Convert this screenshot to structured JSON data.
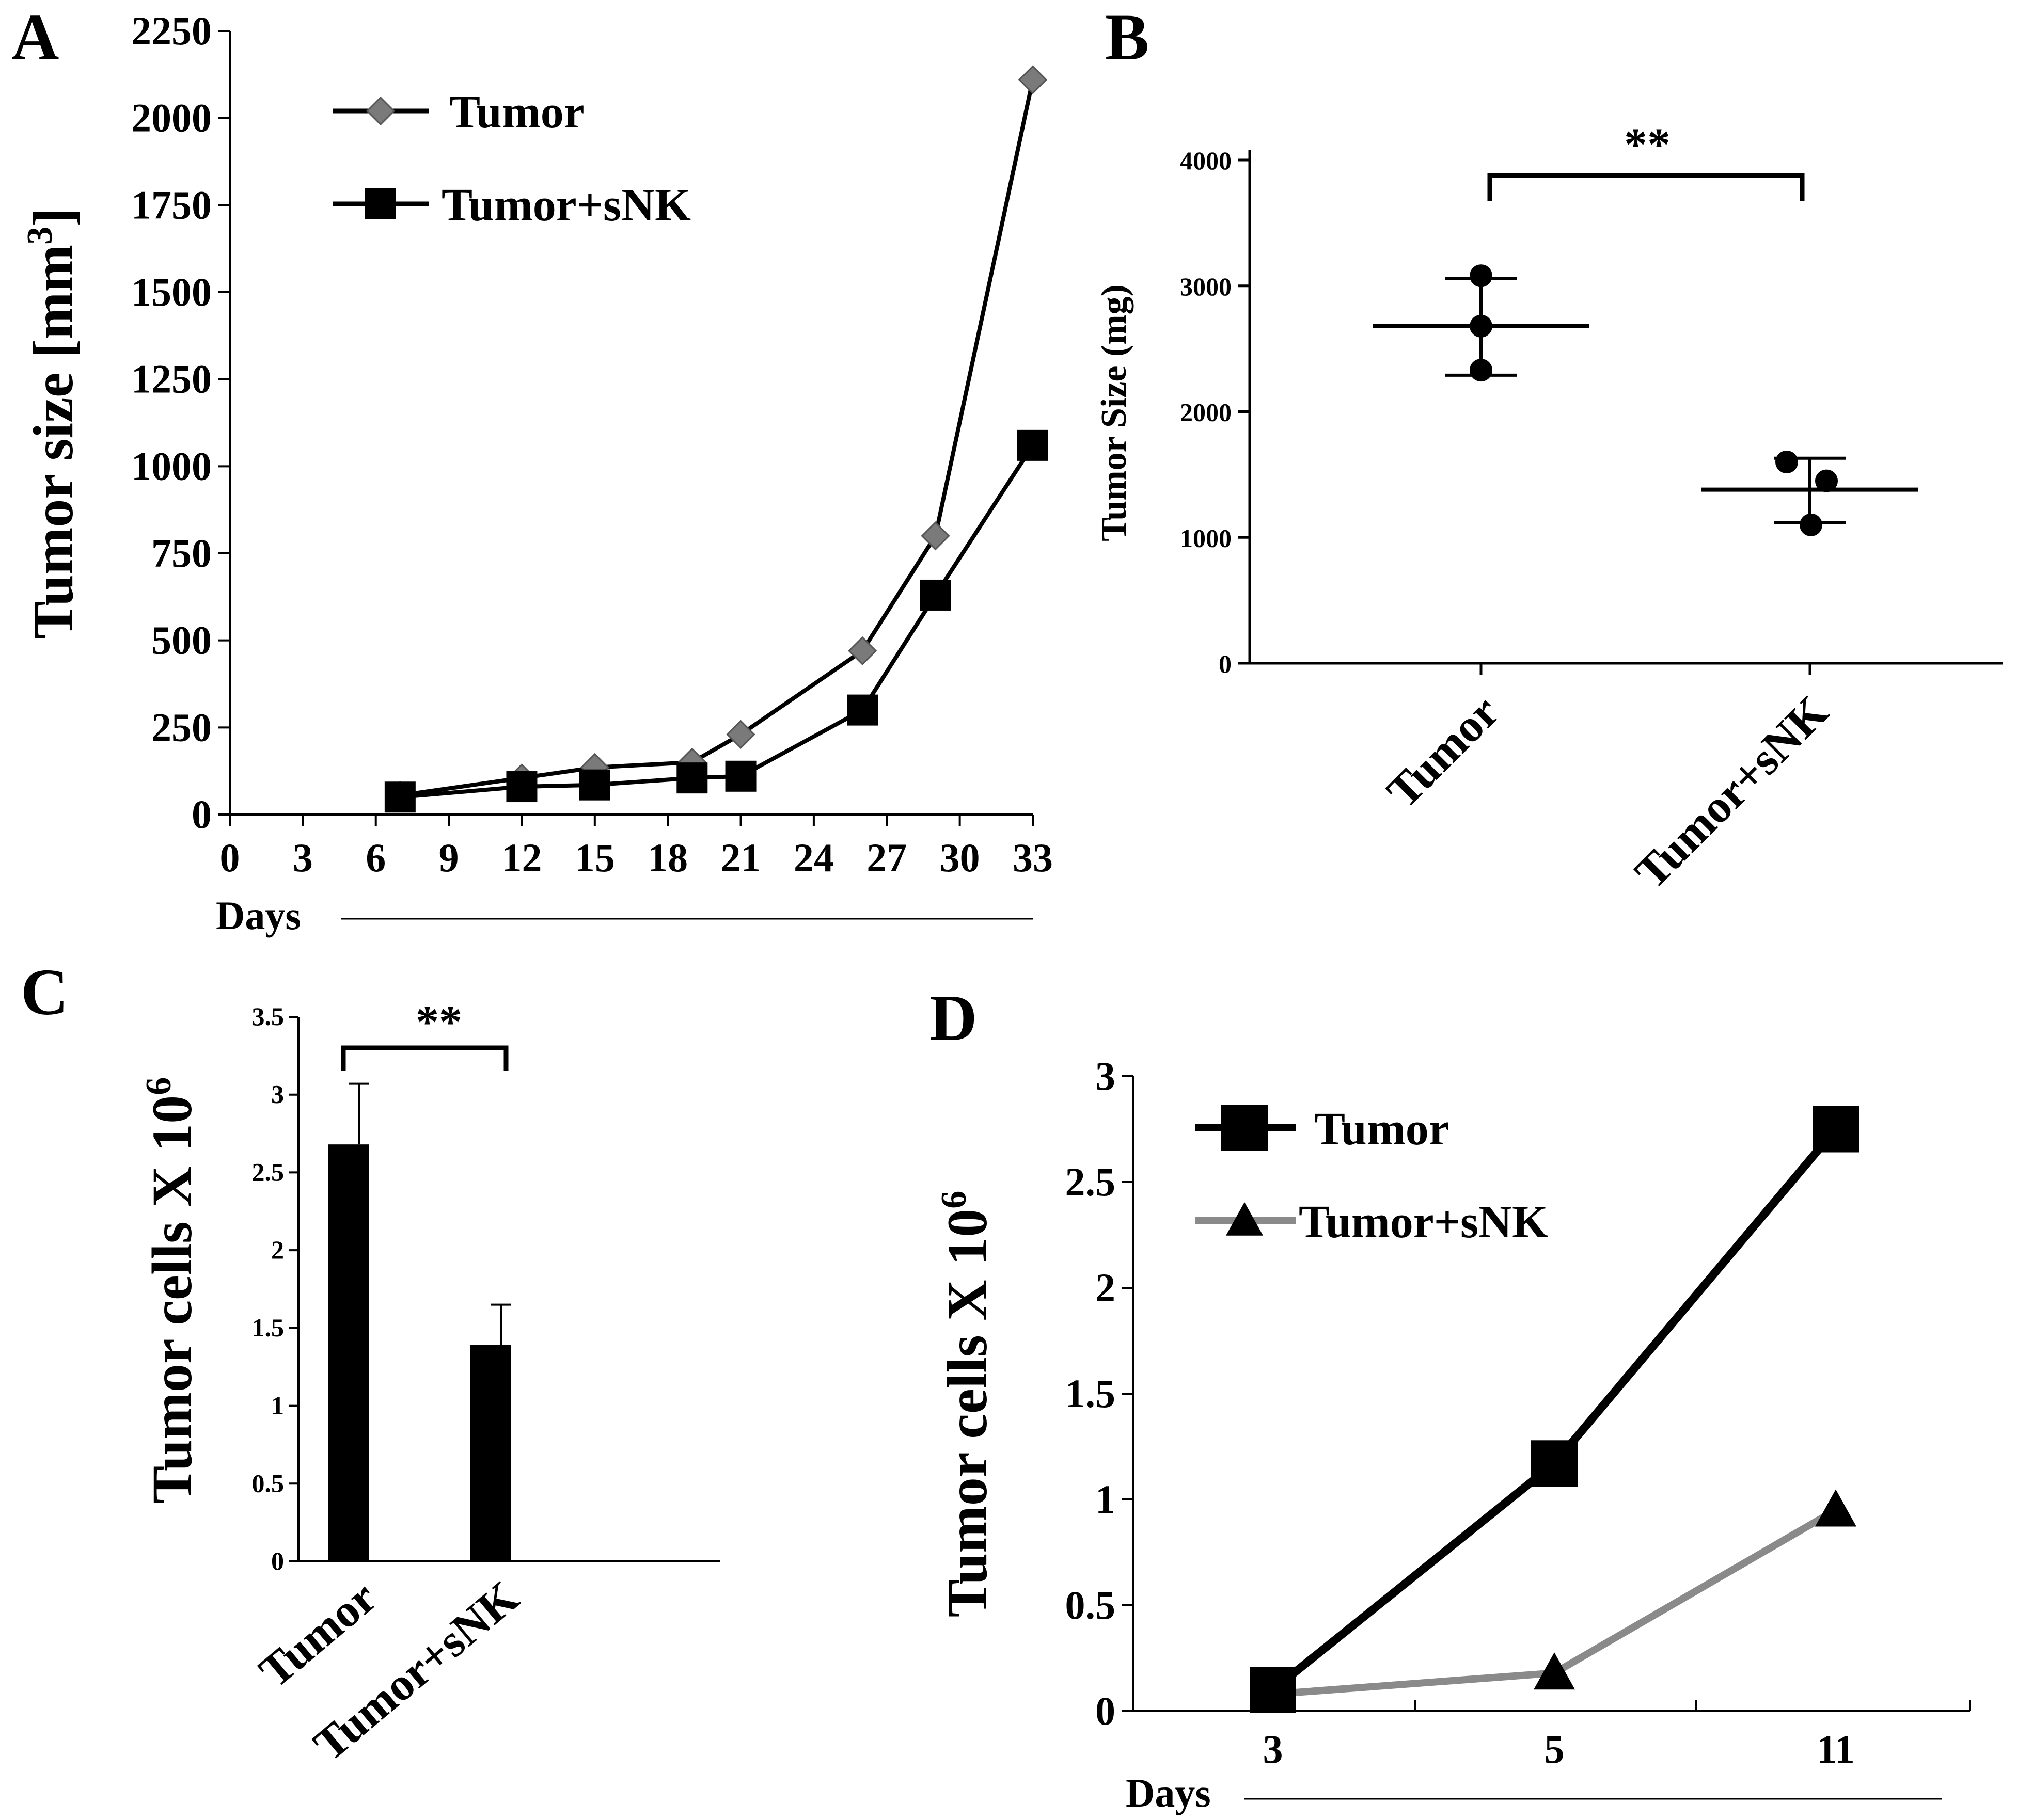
{
  "chart_data": [
    {
      "panel": "A",
      "type": "line",
      "ylabel": "Tumor size [mm",
      "ylabel_sup": "3",
      "ylabel_close": "]",
      "xlabel": "Days",
      "x_ticks": [
        "0",
        "3",
        "6",
        "9",
        "12",
        "15",
        "18",
        "21",
        "24",
        "27",
        "30",
        "33"
      ],
      "y_ticks": [
        "0",
        "250",
        "500",
        "750",
        "1000",
        "1250",
        "1500",
        "1750",
        "2000",
        "2250"
      ],
      "xlim": [
        0,
        33
      ],
      "ylim": [
        0,
        2250
      ],
      "legend_position": "top-left",
      "series": [
        {
          "name": "Tumor",
          "marker": "diamond",
          "color": "#7a7a7a",
          "points": [
            [
              7,
              55
            ],
            [
              12,
              105
            ],
            [
              15,
              135
            ],
            [
              19,
              150
            ],
            [
              21,
              230
            ],
            [
              26,
              470
            ],
            [
              29,
              800
            ],
            [
              33,
              2110
            ]
          ]
        },
        {
          "name": "Tumor+sNK",
          "marker": "square",
          "color": "#000000",
          "points": [
            [
              7,
              50
            ],
            [
              12,
              80
            ],
            [
              15,
              85
            ],
            [
              19,
              105
            ],
            [
              21,
              110
            ],
            [
              26,
              300
            ],
            [
              29,
              630
            ],
            [
              33,
              1060
            ]
          ]
        }
      ]
    },
    {
      "panel": "B",
      "type": "scatter",
      "ylabel": "Tumor Size (mg)",
      "categories": [
        "Tumor",
        "Tumor+sNK"
      ],
      "y_ticks": [
        "0",
        "1000",
        "2000",
        "3000",
        "4000"
      ],
      "ylim": [
        0,
        4000
      ],
      "significance": "**",
      "groups": [
        {
          "category": "Tumor",
          "points": [
            3080,
            2680,
            2330
          ],
          "mean": 2680,
          "sd_low": 2290,
          "sd_high": 3060
        },
        {
          "category": "Tumor+sNK",
          "points": [
            1600,
            1450,
            1100
          ],
          "mean": 1380,
          "sd_low": 1120,
          "sd_high": 1630
        }
      ]
    },
    {
      "panel": "C",
      "type": "bar",
      "ylabel": "Tumor  cells X 10",
      "ylabel_sup": "6",
      "categories": [
        "Tumor",
        "Tumor+sNK"
      ],
      "values": [
        2.68,
        1.39
      ],
      "errors": [
        0.39,
        0.26
      ],
      "y_ticks": [
        "0",
        "0.5",
        "1",
        "1.5",
        "2",
        "2.5",
        "3",
        "3.5"
      ],
      "ylim": [
        0,
        3.5
      ],
      "significance": "**"
    },
    {
      "panel": "D",
      "type": "line",
      "ylabel": "Tumor  cells X 10",
      "ylabel_sup": "6",
      "xlabel": "Days",
      "categories": [
        "3",
        "5",
        "11"
      ],
      "y_ticks": [
        "0",
        "0.5",
        "1",
        "1.5",
        "2",
        "2.5",
        "3"
      ],
      "ylim": [
        0,
        3
      ],
      "legend_position": "top-left",
      "series": [
        {
          "name": "Tumor",
          "marker": "square",
          "color": "#000000",
          "values": [
            0.1,
            1.17,
            2.75
          ]
        },
        {
          "name": "Tumor+sNK",
          "marker": "triangle",
          "color": "#8a8a8a",
          "values": [
            0.08,
            0.18,
            0.95
          ]
        }
      ]
    }
  ]
}
